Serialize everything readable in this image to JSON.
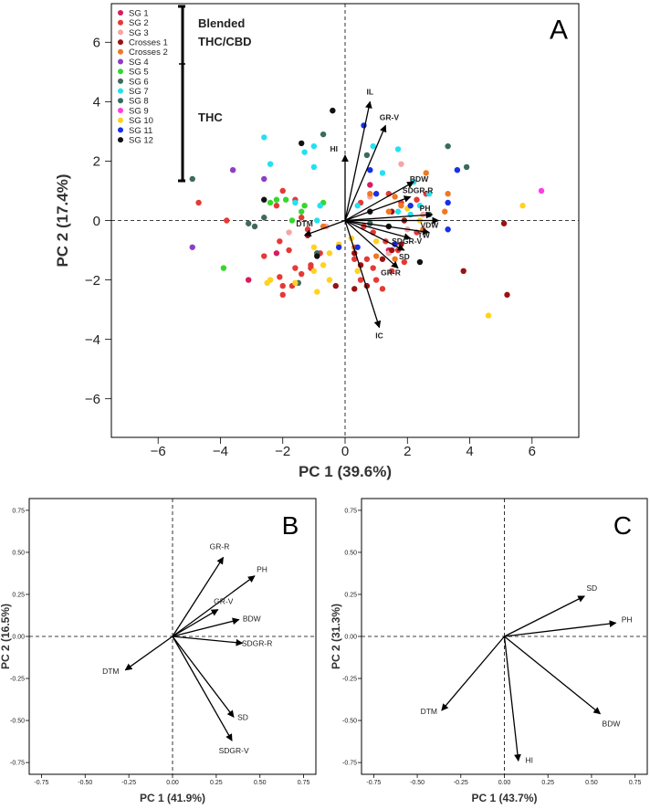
{
  "colors": {
    "SG 1": "#d81b60",
    "SG 2": "#e53935",
    "SG 3": "#f4a6a6",
    "Crosses 1": "#9b1111",
    "Crosses 2": "#f07822",
    "SG 4": "#8e3ec6",
    "SG 5": "#36d62e",
    "SG 6": "#3f6b5c",
    "SG 7": "#22e1f0",
    "SG 8": "#3b6a5f",
    "SG 9": "#ff3de6",
    "SG 10": "#ffd21f",
    "SG 11": "#1730e8",
    "SG 12": "#111111"
  },
  "chart_data": [
    {
      "type": "scatter",
      "panel_label": "A",
      "xlabel": "PC 1 (39.6%)",
      "ylabel": "PC 2 (17.4%)",
      "xlim": [
        -7.5,
        7.5
      ],
      "ylim": [
        -7.3,
        7.3
      ],
      "xticks": [
        -6,
        -4,
        -2,
        0,
        2,
        4,
        6
      ],
      "yticks": [
        -6,
        -4,
        -2,
        0,
        2,
        4,
        6
      ],
      "xtick_labels": [
        "−6",
        "−4",
        "−2",
        "0",
        "2",
        "4",
        "6"
      ],
      "ytick_labels": [
        "−6",
        "−4",
        "−2",
        "0",
        "2",
        "4",
        "6"
      ],
      "legend": {
        "position": "top-left",
        "entries": [
          "SG 1",
          "SG 2",
          "SG 3",
          "Crosses 1",
          "Crosses 2",
          "SG 4",
          "SG 5",
          "SG 6",
          "SG 7",
          "SG 8",
          "SG 9",
          "SG 10",
          "SG 11",
          "SG 12"
        ],
        "group_labels": [
          "Blended",
          "THC/CBD",
          "THC"
        ]
      },
      "vectors": [
        {
          "name": "IL",
          "x": 0.8,
          "y": 4.0
        },
        {
          "name": "GR-V",
          "x": 1.3,
          "y": 3.2
        },
        {
          "name": "HI",
          "x": 0.0,
          "y": 2.2
        },
        {
          "name": "BDW",
          "x": 2.2,
          "y": 1.3
        },
        {
          "name": "SDGR-R",
          "x": 2.1,
          "y": 0.8
        },
        {
          "name": "PH",
          "x": 2.8,
          "y": 0.2
        },
        {
          "name": "VDW",
          "x": 3.0,
          "y": 0.0
        },
        {
          "name": "TW",
          "x": 2.7,
          "y": -0.4
        },
        {
          "name": "SDGR-V",
          "x": 2.1,
          "y": -0.6
        },
        {
          "name": "SD",
          "x": 1.9,
          "y": -1.0
        },
        {
          "name": "GR-R",
          "x": 1.7,
          "y": -1.6
        },
        {
          "name": "IC",
          "x": 1.1,
          "y": -3.6
        },
        {
          "name": "DTM",
          "x": -1.3,
          "y": -0.5
        }
      ],
      "series": [
        {
          "name": "SG 1",
          "points": [
            [
              -2.2,
              -1.1
            ],
            [
              1.4,
              -1.0
            ],
            [
              0.8,
              1.2
            ],
            [
              -3.1,
              -2.0
            ]
          ]
        },
        {
          "name": "SG 2",
          "points": [
            [
              -4.7,
              0.6
            ],
            [
              -3.8,
              0.0
            ],
            [
              -2.6,
              -1.2
            ],
            [
              -2.1,
              -0.7
            ],
            [
              -1.8,
              -1.0
            ],
            [
              -1.6,
              -1.6
            ],
            [
              -2.1,
              -1.9
            ],
            [
              -2.0,
              -2.2
            ],
            [
              -1.7,
              -2.2
            ],
            [
              -1.4,
              -1.8
            ],
            [
              -1.1,
              -1.5
            ],
            [
              -0.9,
              -1.1
            ],
            [
              -1.2,
              -0.3
            ],
            [
              -1.4,
              0.1
            ],
            [
              -1.6,
              0.7
            ],
            [
              -2.2,
              0.5
            ],
            [
              -2.0,
              1.0
            ],
            [
              -0.8,
              -1.1
            ],
            [
              0.3,
              -1.3
            ],
            [
              0.7,
              -1.3
            ],
            [
              0.9,
              -1.6
            ],
            [
              1.0,
              -2.0
            ],
            [
              1.5,
              -1.7
            ],
            [
              1.9,
              -1.4
            ],
            [
              1.7,
              -1.0
            ],
            [
              1.3,
              -0.7
            ],
            [
              0.9,
              -0.4
            ],
            [
              0.6,
              -0.2
            ],
            [
              1.4,
              0.9
            ],
            [
              1.8,
              0.6
            ],
            [
              2.3,
              0.7
            ],
            [
              2.6,
              0.9
            ],
            [
              2.3,
              -0.4
            ],
            [
              0.5,
              0.6
            ],
            [
              0.5,
              -2.0
            ],
            [
              1.2,
              -2.3
            ],
            [
              -2.0,
              -2.5
            ],
            [
              -1.1,
              -1.6
            ]
          ]
        },
        {
          "name": "SG 3",
          "points": [
            [
              -1.8,
              -0.4
            ],
            [
              -0.8,
              0.5
            ],
            [
              1.4,
              -1.1
            ],
            [
              2.0,
              -0.3
            ],
            [
              1.8,
              1.9
            ],
            [
              -0.6,
              -0.2
            ],
            [
              0.8,
              0.8
            ],
            [
              2.5,
              0.2
            ]
          ]
        },
        {
          "name": "Crosses 1",
          "points": [
            [
              5.2,
              -2.5
            ],
            [
              5.1,
              -0.1
            ],
            [
              3.8,
              -1.7
            ],
            [
              0.5,
              -1.5
            ],
            [
              0.7,
              -2.2
            ],
            [
              0.3,
              -2.3
            ],
            [
              -1.2,
              -0.5
            ],
            [
              -0.3,
              -2.2
            ],
            [
              0.3,
              -1.1
            ],
            [
              1.8,
              -0.8
            ],
            [
              1.2,
              -1.3
            ],
            [
              1.5,
              -1.0
            ],
            [
              1.9,
              0.0
            ],
            [
              1.5,
              0.3
            ]
          ]
        },
        {
          "name": "Crosses 2",
          "points": [
            [
              3.3,
              0.9
            ],
            [
              3.2,
              0.3
            ],
            [
              2.6,
              1.6
            ],
            [
              1.6,
              0.8
            ],
            [
              1.8,
              0.5
            ],
            [
              0.8,
              0.9
            ],
            [
              1.0,
              -1.2
            ],
            [
              1.6,
              -1.3
            ],
            [
              0.3,
              -0.9
            ],
            [
              2.5,
              -0.3
            ],
            [
              -0.7,
              -0.2
            ],
            [
              1.4,
              0.3
            ]
          ]
        },
        {
          "name": "SG 4",
          "points": [
            [
              -4.9,
              -0.9
            ],
            [
              -3.6,
              1.7
            ],
            [
              -2.6,
              1.4
            ]
          ]
        },
        {
          "name": "SG 5",
          "points": [
            [
              -3.9,
              -1.6
            ],
            [
              -2.2,
              0.7
            ],
            [
              -1.9,
              0.7
            ],
            [
              -2.4,
              0.6
            ],
            [
              -1.3,
              0.5
            ],
            [
              -0.7,
              0.6
            ],
            [
              -1.4,
              0.3
            ],
            [
              -1.7,
              0.0
            ]
          ]
        },
        {
          "name": "SG 6",
          "points": [
            [
              -4.9,
              1.4
            ],
            [
              -2.9,
              -0.2
            ],
            [
              -2.6,
              0.1
            ],
            [
              -3.1,
              -0.1
            ],
            [
              -0.9,
              -1.1
            ],
            [
              -1.5,
              -2.1
            ]
          ]
        },
        {
          "name": "SG 7",
          "points": [
            [
              -2.6,
              2.8
            ],
            [
              -2.4,
              1.9
            ],
            [
              -1.3,
              2.3
            ],
            [
              -1.0,
              1.8
            ],
            [
              -1.0,
              2.5
            ],
            [
              -0.8,
              0.5
            ],
            [
              -0.9,
              0.0
            ],
            [
              0.4,
              0.5
            ],
            [
              1.2,
              1.6
            ],
            [
              0.9,
              2.5
            ],
            [
              1.7,
              2.4
            ],
            [
              2.2,
              1.3
            ],
            [
              2.7,
              0.9
            ],
            [
              2.4,
              0.5
            ],
            [
              1.7,
              0.3
            ],
            [
              2.1,
              0.2
            ],
            [
              -1.6,
              0.6
            ]
          ]
        },
        {
          "name": "SG 8",
          "points": [
            [
              3.3,
              2.5
            ],
            [
              3.9,
              1.8
            ],
            [
              -0.7,
              2.9
            ],
            [
              0.7,
              2.2
            ],
            [
              2.7,
              0.2
            ],
            [
              0.8,
              -0.1
            ]
          ]
        },
        {
          "name": "SG 9",
          "points": [
            [
              6.3,
              1.0
            ]
          ]
        },
        {
          "name": "SG 10",
          "points": [
            [
              5.7,
              0.5
            ],
            [
              4.6,
              -3.2
            ],
            [
              -0.7,
              -1.5
            ],
            [
              -0.9,
              -2.4
            ],
            [
              -0.5,
              -2.0
            ],
            [
              -1.6,
              -2.1
            ],
            [
              -1.0,
              -0.9
            ],
            [
              -0.2,
              -0.8
            ],
            [
              0.2,
              -0.6
            ],
            [
              2.0,
              0.4
            ],
            [
              2.4,
              0.0
            ],
            [
              -2.4,
              -2.0
            ],
            [
              -1.0,
              -1.7
            ],
            [
              -0.5,
              -1.1
            ],
            [
              0.4,
              -1.7
            ],
            [
              1.0,
              -0.7
            ],
            [
              -2.5,
              -2.1
            ]
          ]
        },
        {
          "name": "SG 11",
          "points": [
            [
              0.6,
              3.2
            ],
            [
              0.8,
              1.7
            ],
            [
              1.0,
              0.9
            ],
            [
              2.1,
              0.5
            ],
            [
              3.6,
              1.7
            ],
            [
              3.3,
              0.6
            ],
            [
              3.3,
              -0.3
            ],
            [
              1.6,
              -0.8
            ],
            [
              0.4,
              -0.9
            ],
            [
              -0.2,
              -0.9
            ]
          ]
        },
        {
          "name": "SG 12",
          "points": [
            [
              -1.4,
              2.6
            ],
            [
              -0.4,
              3.7
            ],
            [
              2.4,
              -1.4
            ],
            [
              -2.6,
              0.7
            ],
            [
              0.8,
              0.3
            ],
            [
              1.4,
              -0.2
            ],
            [
              -0.9,
              -1.2
            ]
          ]
        }
      ]
    },
    {
      "type": "biplot",
      "panel_label": "B",
      "xlabel": "PC 1 (41.9%)",
      "ylabel": "PC 2 (16.5%)",
      "xlim": [
        -0.82,
        0.82
      ],
      "ylim": [
        -0.82,
        0.82
      ],
      "xticks": [
        -0.75,
        -0.5,
        -0.25,
        0.0,
        0.25,
        0.5,
        0.75
      ],
      "yticks": [
        -0.75,
        -0.5,
        -0.25,
        0.0,
        0.25,
        0.5,
        0.75
      ],
      "xtick_labels": [
        "-0.75",
        "-0.50",
        "-0.25",
        "0.00",
        "0.25",
        "0.50",
        "0.75"
      ],
      "ytick_labels": [
        "-0.75",
        "-0.50",
        "-0.25",
        "0.00",
        "0.25",
        "0.50",
        "0.75"
      ],
      "vectors": [
        {
          "name": "GR-R",
          "x": 0.29,
          "y": 0.47
        },
        {
          "name": "PH",
          "x": 0.47,
          "y": 0.36
        },
        {
          "name": "GR-V",
          "x": 0.26,
          "y": 0.16
        },
        {
          "name": "BDW",
          "x": 0.38,
          "y": 0.1
        },
        {
          "name": "SDGR-R",
          "x": 0.4,
          "y": -0.04
        },
        {
          "name": "DTM",
          "x": -0.27,
          "y": -0.2
        },
        {
          "name": "SD",
          "x": 0.35,
          "y": -0.48
        },
        {
          "name": "SDGR-V",
          "x": 0.34,
          "y": -0.62
        }
      ]
    },
    {
      "type": "biplot",
      "panel_label": "C",
      "xlabel": "PC 1 (43.7%)",
      "ylabel": "PC 2 (31.3%)",
      "xlim": [
        -0.82,
        0.82
      ],
      "ylim": [
        -0.82,
        0.82
      ],
      "xticks": [
        -0.75,
        -0.5,
        -0.25,
        0.0,
        0.25,
        0.5,
        0.75
      ],
      "yticks": [
        -0.75,
        -0.5,
        -0.25,
        0.0,
        0.25,
        0.5,
        0.75
      ],
      "xtick_labels": [
        "-0.75",
        "-0.50",
        "-0.25",
        "0.00",
        "0.25",
        "0.50",
        "0.75"
      ],
      "ytick_labels": [
        "-0.75",
        "-0.50",
        "-0.25",
        "0.00",
        "0.25",
        "0.50",
        "0.75"
      ],
      "vectors": [
        {
          "name": "SD",
          "x": 0.46,
          "y": 0.24
        },
        {
          "name": "PH",
          "x": 0.64,
          "y": 0.08
        },
        {
          "name": "DTM",
          "x": -0.36,
          "y": -0.44
        },
        {
          "name": "BDW",
          "x": 0.55,
          "y": -0.46
        },
        {
          "name": "HI",
          "x": 0.08,
          "y": -0.74
        }
      ]
    }
  ]
}
